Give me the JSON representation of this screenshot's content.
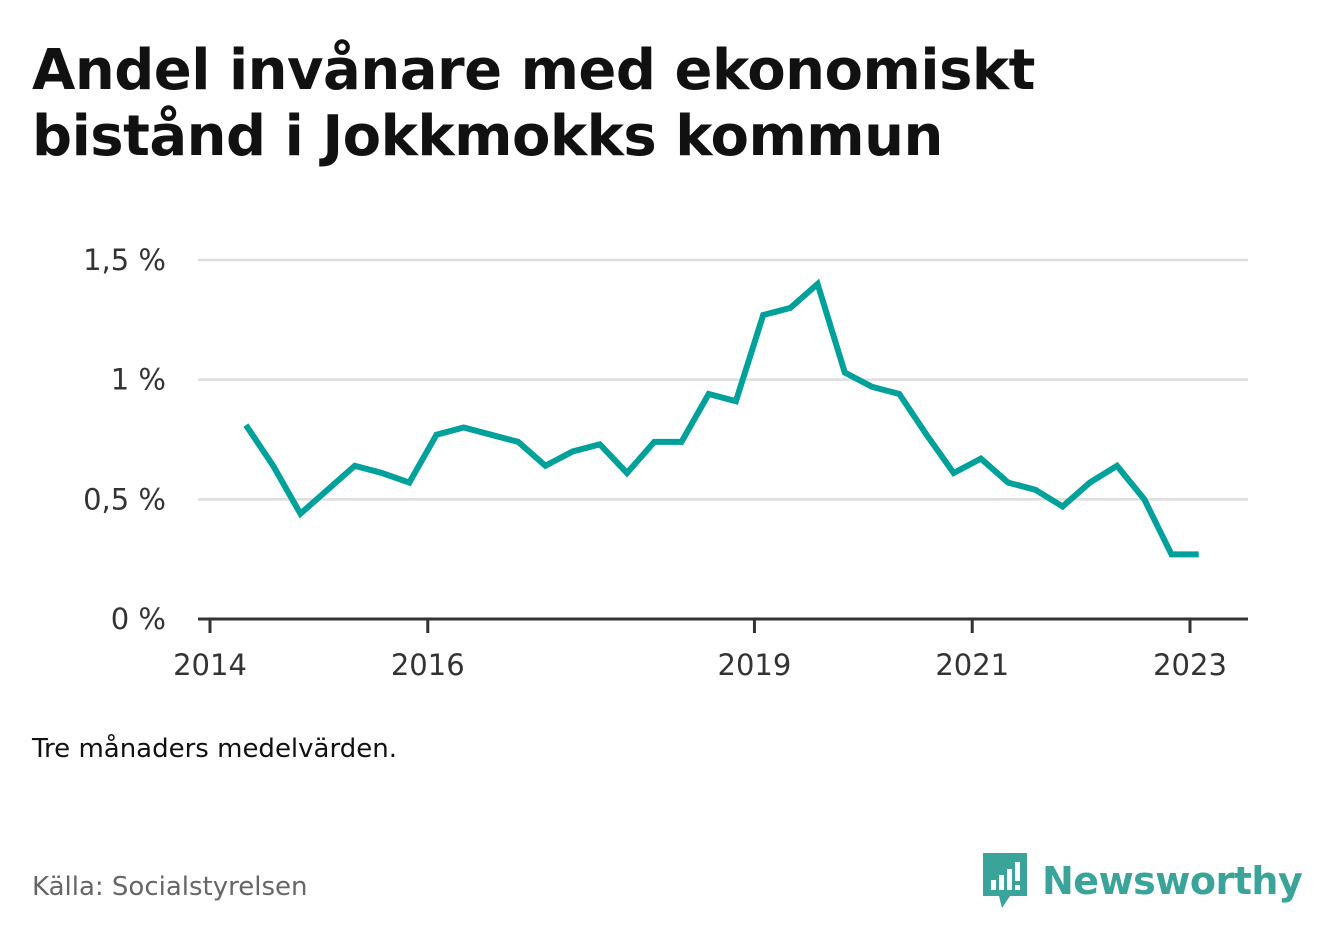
{
  "chart_data": {
    "type": "line",
    "title": "Andel invånare med ekonomiskt bistånd i Jokkmokks kommun",
    "xlabel": "",
    "ylabel": "",
    "ylim": [
      0,
      1.5
    ],
    "yticks": [
      0,
      0.5,
      1,
      1.5
    ],
    "ytick_labels": [
      "0 %",
      "0,5 %",
      "1 %",
      "1,5 %"
    ],
    "xlim": [
      2014,
      2023.25
    ],
    "xticks": [
      2014,
      2016,
      2019,
      2021,
      2023
    ],
    "xtick_labels": [
      "2014",
      "2016",
      "2019",
      "2021",
      "2023"
    ],
    "grid": true,
    "line_color": "#00a19a",
    "x": [
      2014.33,
      2014.58,
      2014.83,
      2015.08,
      2015.33,
      2015.58,
      2015.83,
      2016.08,
      2016.33,
      2016.58,
      2016.83,
      2017.08,
      2017.33,
      2017.58,
      2017.83,
      2018.08,
      2018.33,
      2018.58,
      2018.83,
      2019.08,
      2019.33,
      2019.58,
      2019.83,
      2020.08,
      2020.33,
      2020.58,
      2020.83,
      2021.08,
      2021.33,
      2021.58,
      2021.83,
      2022.08,
      2022.33,
      2022.58,
      2022.83,
      2023.08
    ],
    "values": [
      0.81,
      0.64,
      0.44,
      0.54,
      0.64,
      0.61,
      0.57,
      0.77,
      0.8,
      0.77,
      0.74,
      0.64,
      0.7,
      0.73,
      0.61,
      0.74,
      0.74,
      0.94,
      0.91,
      1.27,
      1.3,
      1.4,
      1.03,
      0.97,
      0.94,
      0.77,
      0.61,
      0.67,
      0.57,
      0.54,
      0.47,
      0.57,
      0.64,
      0.5,
      0.27,
      0.27
    ]
  },
  "footer": {
    "note": "Tre månaders medelvärden.",
    "source": "Källa: Socialstyrelsen",
    "brand": "Newsworthy"
  },
  "colors": {
    "brand": "#3aa39a",
    "grid": "#dddddd",
    "axis": "#333333"
  }
}
